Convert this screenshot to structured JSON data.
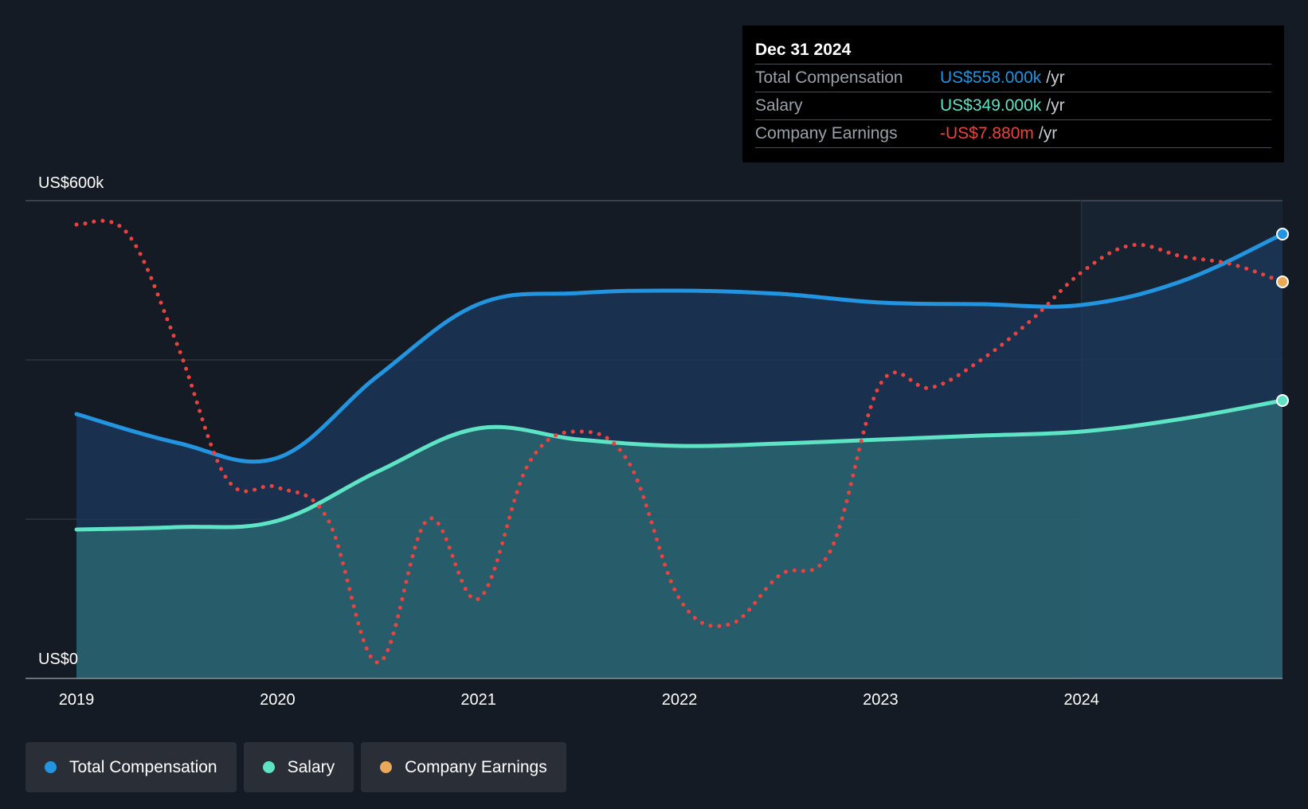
{
  "chart_data": {
    "type": "area",
    "title": "",
    "y_axis": {
      "min": 0,
      "max": 600,
      "top_label": "US$600k",
      "bottom_label": "US$0",
      "gridlines": [
        0,
        200,
        400,
        600
      ]
    },
    "x_axis": {
      "min": 2019,
      "max": 2025,
      "ticks": [
        "2019",
        "2020",
        "2021",
        "2022",
        "2023",
        "2024"
      ]
    },
    "series": [
      {
        "name": "Total Compensation",
        "color": "#2394df",
        "style": "solid-area",
        "y_unit": "US$k",
        "points": [
          [
            2019,
            332
          ],
          [
            2019.5,
            296
          ],
          [
            2020,
            277
          ],
          [
            2020.5,
            380
          ],
          [
            2021,
            470
          ],
          [
            2021.5,
            484
          ],
          [
            2022,
            487
          ],
          [
            2022.5,
            483
          ],
          [
            2023,
            472
          ],
          [
            2023.5,
            470
          ],
          [
            2024,
            469
          ],
          [
            2024.5,
            499
          ],
          [
            2025,
            558
          ]
        ]
      },
      {
        "name": "Salary",
        "color": "#5ee3c5",
        "style": "solid-area",
        "y_unit": "US$k",
        "points": [
          [
            2019,
            187
          ],
          [
            2019.5,
            190
          ],
          [
            2020,
            198
          ],
          [
            2020.5,
            260
          ],
          [
            2021,
            314
          ],
          [
            2021.5,
            300
          ],
          [
            2022,
            292
          ],
          [
            2022.5,
            295
          ],
          [
            2023,
            300
          ],
          [
            2023.5,
            305
          ],
          [
            2024,
            310
          ],
          [
            2024.5,
            326
          ],
          [
            2025,
            349
          ]
        ]
      },
      {
        "name": "Company Earnings",
        "color": "#e8433f",
        "style": "dotted",
        "marker_color": "#e8a95a",
        "y_unit": "relative",
        "points": [
          [
            2019,
            570
          ],
          [
            2019.25,
            560
          ],
          [
            2019.5,
            420
          ],
          [
            2019.75,
            250
          ],
          [
            2020,
            240
          ],
          [
            2020.25,
            200
          ],
          [
            2020.5,
            20
          ],
          [
            2020.75,
            200
          ],
          [
            2021,
            100
          ],
          [
            2021.25,
            270
          ],
          [
            2021.5,
            310
          ],
          [
            2021.75,
            270
          ],
          [
            2022,
            100
          ],
          [
            2022.25,
            68
          ],
          [
            2022.5,
            130
          ],
          [
            2022.75,
            160
          ],
          [
            2023,
            370
          ],
          [
            2023.25,
            365
          ],
          [
            2023.5,
            400
          ],
          [
            2023.75,
            450
          ],
          [
            2024,
            510
          ],
          [
            2024.25,
            544
          ],
          [
            2024.5,
            530
          ],
          [
            2024.75,
            520
          ],
          [
            2025,
            498
          ]
        ]
      }
    ],
    "highlight_range": [
      2024,
      2025
    ],
    "tooltip": {
      "date": "Dec 31 2024",
      "rows": [
        {
          "label": "Total Compensation",
          "value": "US$558.000k",
          "unit": "/yr",
          "color": "#2394df"
        },
        {
          "label": "Salary",
          "value": "US$349.000k",
          "unit": "/yr",
          "color": "#5ee3c5"
        },
        {
          "label": "Company Earnings",
          "value": "-US$7.880m",
          "unit": "/yr",
          "color": "#e8433f"
        }
      ]
    },
    "legend": [
      {
        "label": "Total Compensation",
        "color": "#2394df"
      },
      {
        "label": "Salary",
        "color": "#5ee3c5"
      },
      {
        "label": "Company Earnings",
        "color": "#e8a95a"
      }
    ]
  }
}
